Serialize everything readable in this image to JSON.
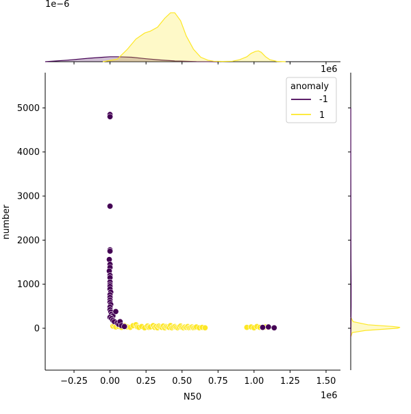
{
  "chart_data": {
    "type": "scatter",
    "title": "",
    "xlabel": "N50",
    "ylabel": "number",
    "x_offset_label": "1e6",
    "top_marginal_offset_label": "1e−6",
    "xlim": [
      -0.45,
      1.6
    ],
    "ylim": [
      -950,
      5800
    ],
    "x_ticks": [
      -0.25,
      0.0,
      0.25,
      0.5,
      0.75,
      1.0,
      1.25,
      1.5
    ],
    "x_tick_labels": [
      "−0.25",
      "0.00",
      "0.25",
      "0.50",
      "0.75",
      "1.00",
      "1.25",
      "1.50"
    ],
    "y_ticks": [
      0,
      1000,
      2000,
      3000,
      4000,
      5000
    ],
    "y_tick_labels": [
      "0",
      "1000",
      "2000",
      "3000",
      "4000",
      "5000"
    ],
    "grid": false,
    "legend": {
      "title": "anomaly",
      "location": "upper right",
      "entries": [
        {
          "label": "-1",
          "color": "#440154"
        },
        {
          "label": "1",
          "color": "#fde725"
        }
      ]
    },
    "series": [
      {
        "name": "1",
        "color": "#fde725",
        "points": [
          [
            0.02,
            50
          ],
          [
            0.03,
            80
          ],
          [
            0.04,
            30
          ],
          [
            0.05,
            120
          ],
          [
            0.06,
            40
          ],
          [
            0.08,
            20
          ],
          [
            0.1,
            60
          ],
          [
            0.12,
            30
          ],
          [
            0.14,
            20
          ],
          [
            0.16,
            60
          ],
          [
            0.18,
            80
          ],
          [
            0.19,
            30
          ],
          [
            0.2,
            20
          ],
          [
            0.22,
            40
          ],
          [
            0.24,
            10
          ],
          [
            0.26,
            50
          ],
          [
            0.27,
            20
          ],
          [
            0.28,
            30
          ],
          [
            0.3,
            60
          ],
          [
            0.31,
            20
          ],
          [
            0.32,
            40
          ],
          [
            0.33,
            10
          ],
          [
            0.34,
            50
          ],
          [
            0.35,
            30
          ],
          [
            0.36,
            20
          ],
          [
            0.37,
            50
          ],
          [
            0.38,
            10
          ],
          [
            0.39,
            40
          ],
          [
            0.4,
            30
          ],
          [
            0.41,
            20
          ],
          [
            0.42,
            60
          ],
          [
            0.43,
            10
          ],
          [
            0.44,
            30
          ],
          [
            0.45,
            40
          ],
          [
            0.46,
            20
          ],
          [
            0.47,
            10
          ],
          [
            0.48,
            30
          ],
          [
            0.49,
            50
          ],
          [
            0.5,
            20
          ],
          [
            0.51,
            10
          ],
          [
            0.52,
            30
          ],
          [
            0.53,
            20
          ],
          [
            0.54,
            40
          ],
          [
            0.55,
            10
          ],
          [
            0.56,
            20
          ],
          [
            0.57,
            30
          ],
          [
            0.58,
            10
          ],
          [
            0.59,
            20
          ],
          [
            0.6,
            30
          ],
          [
            0.62,
            10
          ],
          [
            0.64,
            20
          ],
          [
            0.66,
            10
          ],
          [
            0.95,
            20
          ],
          [
            0.98,
            30
          ],
          [
            1.0,
            10
          ],
          [
            1.02,
            40
          ],
          [
            1.04,
            20
          ],
          [
            1.06,
            10
          ],
          [
            1.08,
            30
          ],
          [
            1.1,
            20
          ]
        ]
      },
      {
        "name": "-1",
        "color": "#440154",
        "points": [
          [
            0.0,
            4850
          ],
          [
            0.0,
            4800
          ],
          [
            0.0,
            2770
          ],
          [
            0.0,
            1780
          ],
          [
            0.0,
            1750
          ],
          [
            -0.005,
            1560
          ],
          [
            0.0,
            1450
          ],
          [
            0.0,
            1380
          ],
          [
            -0.005,
            1300
          ],
          [
            0.0,
            1200
          ],
          [
            0.0,
            1150
          ],
          [
            0.0,
            1050
          ],
          [
            0.0,
            990
          ],
          [
            0.0,
            950
          ],
          [
            0.0,
            890
          ],
          [
            0.005,
            820
          ],
          [
            0.0,
            760
          ],
          [
            0.0,
            700
          ],
          [
            0.0,
            640
          ],
          [
            0.0,
            590
          ],
          [
            0.005,
            540
          ],
          [
            0.0,
            480
          ],
          [
            0.0,
            420
          ],
          [
            0.005,
            370
          ],
          [
            0.01,
            320
          ],
          [
            0.02,
            280
          ],
          [
            0.0,
            250
          ],
          [
            0.01,
            220
          ],
          [
            0.02,
            180
          ],
          [
            0.03,
            150
          ],
          [
            0.04,
            380
          ],
          [
            0.05,
            120
          ],
          [
            0.06,
            90
          ],
          [
            0.07,
            150
          ],
          [
            0.08,
            60
          ],
          [
            0.1,
            40
          ],
          [
            1.06,
            20
          ],
          [
            1.1,
            30
          ],
          [
            1.14,
            10
          ]
        ]
      }
    ],
    "marginal_x": {
      "series": [
        {
          "name": "-1",
          "color": "#440154",
          "x": [
            -0.45,
            -0.3,
            -0.15,
            -0.05,
            0.0,
            0.05,
            0.15,
            0.25,
            0.35,
            0.45,
            0.6,
            0.75
          ],
          "density": [
            0.0,
            0.03,
            0.07,
            0.09,
            0.1,
            0.1,
            0.09,
            0.06,
            0.035,
            0.015,
            0.003,
            0.0
          ]
        },
        {
          "name": "1",
          "color": "#fde725",
          "x": [
            -0.05,
            0.05,
            0.12,
            0.18,
            0.24,
            0.28,
            0.33,
            0.38,
            0.42,
            0.45,
            0.49,
            0.53,
            0.58,
            0.63,
            0.68,
            0.72,
            0.78,
            0.85,
            0.9,
            0.95,
            0.98,
            1.01,
            1.03,
            1.05,
            1.08,
            1.11,
            1.16,
            1.22
          ],
          "density": [
            0.0,
            0.05,
            0.25,
            0.46,
            0.58,
            0.62,
            0.7,
            0.88,
            0.99,
            0.99,
            0.83,
            0.52,
            0.25,
            0.09,
            0.03,
            0.01,
            0.005,
            0.01,
            0.04,
            0.1,
            0.17,
            0.21,
            0.22,
            0.19,
            0.1,
            0.04,
            0.005,
            0.0
          ]
        }
      ]
    },
    "marginal_y": {
      "series": [
        {
          "name": "1",
          "color": "#fde725",
          "y": [
            -200,
            -100,
            -50,
            0,
            20,
            40,
            80,
            150,
            250
          ],
          "density": [
            0.0,
            0.03,
            0.3,
            0.95,
            1.0,
            0.85,
            0.35,
            0.05,
            0.0
          ]
        },
        {
          "name": "-1",
          "color": "#440154",
          "y": [
            -200,
            0,
            500,
            1000,
            1500,
            2000,
            3000,
            4000,
            5000
          ],
          "density": [
            0.0,
            0.004,
            0.008,
            0.008,
            0.006,
            0.004,
            0.003,
            0.002,
            0.001
          ]
        }
      ]
    }
  }
}
